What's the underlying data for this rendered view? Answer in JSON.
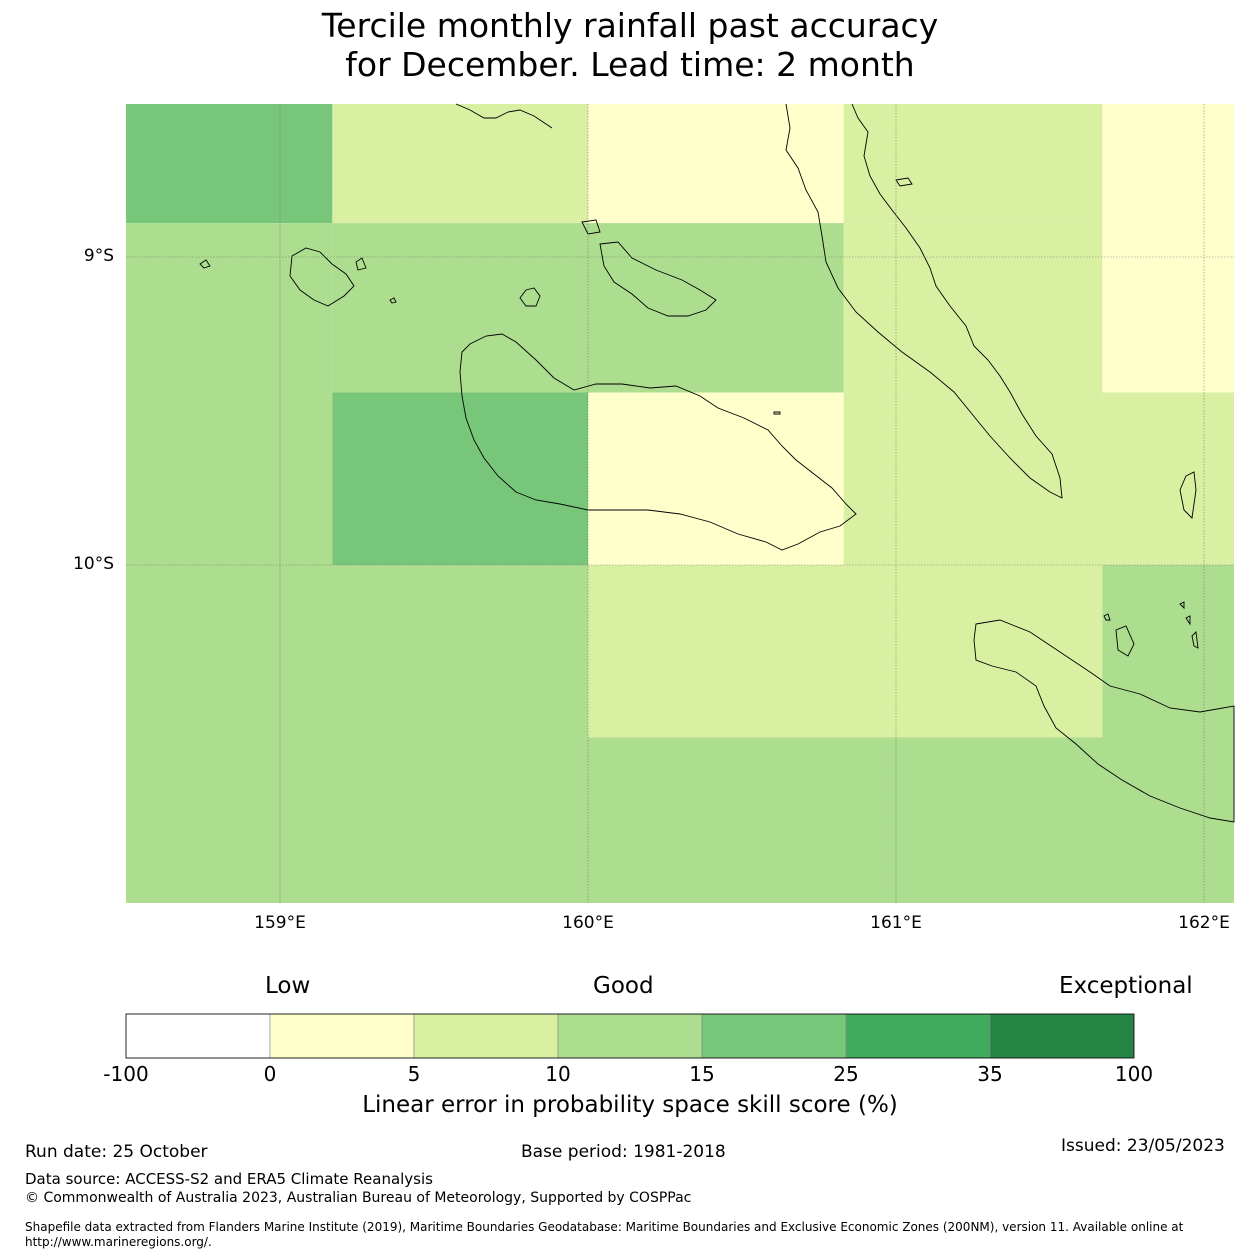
{
  "title": {
    "line1": "Tercile monthly rainfall past accuracy",
    "line2": "for December. Lead time: 2 month"
  },
  "map": {
    "lon_range": [
      158.5,
      162.1
    ],
    "lat_range": [
      -11.1,
      -8.5
    ],
    "lat_labels": [
      {
        "value": -9,
        "label": "9°S"
      },
      {
        "value": -10,
        "label": "10°S"
      }
    ],
    "lon_labels": [
      {
        "value": 159,
        "label": "159°E"
      },
      {
        "value": 160,
        "label": "160°E"
      },
      {
        "value": 161,
        "label": "161°E"
      },
      {
        "value": 162,
        "label": "162°E"
      }
    ],
    "cells": [
      {
        "lon": [
          158.5,
          159.17
        ],
        "lat": [
          -8.5,
          -8.89
        ],
        "bin": 4
      },
      {
        "lon": [
          159.17,
          160.0
        ],
        "lat": [
          -8.5,
          -8.89
        ],
        "bin": 2
      },
      {
        "lon": [
          160.0,
          160.83
        ],
        "lat": [
          -8.5,
          -8.89
        ],
        "bin": 1
      },
      {
        "lon": [
          160.83,
          161.67
        ],
        "lat": [
          -8.5,
          -8.89
        ],
        "bin": 2
      },
      {
        "lon": [
          161.67,
          162.1
        ],
        "lat": [
          -8.5,
          -8.89
        ],
        "bin": 1
      },
      {
        "lon": [
          158.5,
          159.17
        ],
        "lat": [
          -8.89,
          -9.44
        ],
        "bin": 3
      },
      {
        "lon": [
          159.17,
          160.0
        ],
        "lat": [
          -8.89,
          -9.44
        ],
        "bin": 3
      },
      {
        "lon": [
          160.0,
          160.83
        ],
        "lat": [
          -8.89,
          -9.44
        ],
        "bin": 3
      },
      {
        "lon": [
          160.83,
          161.67
        ],
        "lat": [
          -8.89,
          -9.44
        ],
        "bin": 2
      },
      {
        "lon": [
          161.67,
          162.1
        ],
        "lat": [
          -8.89,
          -9.44
        ],
        "bin": 1
      },
      {
        "lon": [
          158.5,
          159.17
        ],
        "lat": [
          -9.44,
          -10.0
        ],
        "bin": 3
      },
      {
        "lon": [
          159.17,
          160.0
        ],
        "lat": [
          -9.44,
          -10.0
        ],
        "bin": 4
      },
      {
        "lon": [
          160.0,
          160.83
        ],
        "lat": [
          -9.44,
          -10.0
        ],
        "bin": 1
      },
      {
        "lon": [
          160.83,
          161.67
        ],
        "lat": [
          -9.44,
          -10.0
        ],
        "bin": 2
      },
      {
        "lon": [
          161.67,
          162.1
        ],
        "lat": [
          -9.44,
          -10.0
        ],
        "bin": 2
      },
      {
        "lon": [
          158.5,
          160.0
        ],
        "lat": [
          -10.0,
          -10.56
        ],
        "bin": 3
      },
      {
        "lon": [
          160.0,
          161.67
        ],
        "lat": [
          -10.0,
          -10.56
        ],
        "bin": 2
      },
      {
        "lon": [
          161.67,
          162.1
        ],
        "lat": [
          -10.0,
          -10.56
        ],
        "bin": 3
      },
      {
        "lon": [
          158.5,
          162.1
        ],
        "lat": [
          -10.56,
          -11.1
        ],
        "bin": 3
      }
    ]
  },
  "colorbar": {
    "categories": {
      "low": "Low",
      "good": "Good",
      "exceptional": "Exceptional"
    },
    "ticks": [
      "-100",
      "0",
      "5",
      "10",
      "15",
      "25",
      "35",
      "100"
    ],
    "colors": [
      "#ffffff",
      "#ffffcc",
      "#d9f0a3",
      "#addd8e",
      "#78c679",
      "#41ab5d",
      "#238443"
    ],
    "title": "Linear error in probability space skill score (%)"
  },
  "footer": {
    "run_date": "Run date: 25 October",
    "base_period": "Base period: 1981-2018",
    "issued": "Issued: 23/05/2023",
    "data_source": "Data source: ACCESS-S2 and ERA5 Climate Reanalysis",
    "copyright": "© Commonwealth of Australia 2023, Australian Bureau of Meteorology, Supported by COSPPac",
    "shapefile": "Shapefile data extracted from Flanders Marine Institute (2019), Maritime Boundaries Geodatabase: Maritime Boundaries and Exclusive Economic Zones (200NM), version 11. Available online at http://www.marineregions.org/."
  }
}
